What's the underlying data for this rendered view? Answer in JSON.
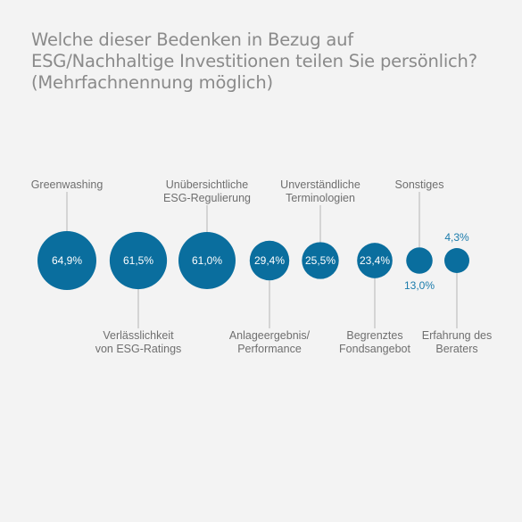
{
  "title": {
    "lines": [
      "Welche dieser Bedenken in Bezug auf",
      "ESG/Nachhaltige Investitionen teilen Sie persönlich?",
      "(Mehrfachnennung möglich)"
    ]
  },
  "chart_data": {
    "type": "bubble",
    "unit": "%",
    "color": "#0a6e9e",
    "outside_value_color": "#1a7bab",
    "categories": [
      "Greenwashing",
      "Verlässlichkeit von ESG-Ratings",
      "Unübersichtliche ESG-Regulierung",
      "Anlageergebnis/ Performance",
      "Unverständliche Terminologien",
      "Begrenztes Fondsangebot",
      "Sonstiges",
      "Erfahrung des Beraters"
    ],
    "values": [
      64.9,
      61.5,
      61.0,
      29.4,
      25.5,
      23.4,
      13.0,
      4.3
    ],
    "value_labels": [
      "64,9%",
      "61,5%",
      "61,0%",
      "29,4%",
      "25,5%",
      "23,4%",
      "13,0%",
      "4,3%"
    ],
    "label_lines": [
      [
        "Greenwashing"
      ],
      [
        "Verlässlichkeit",
        "von ESG-Ratings"
      ],
      [
        "Unübersichtliche",
        "ESG-Regulierung"
      ],
      [
        "Anlageergebnis/",
        "Performance"
      ],
      [
        "Unverständliche",
        "Terminologien"
      ],
      [
        "Begrenztes",
        "Fondsangebot"
      ],
      [
        "Sonstiges"
      ],
      [
        "Erfahrung des",
        "Beraters"
      ]
    ],
    "label_positions": [
      "above",
      "below",
      "above",
      "below",
      "above",
      "below",
      "above",
      "below"
    ],
    "value_label_positions": [
      "inside",
      "inside",
      "inside",
      "inside",
      "inside",
      "inside",
      "below",
      "above"
    ]
  }
}
